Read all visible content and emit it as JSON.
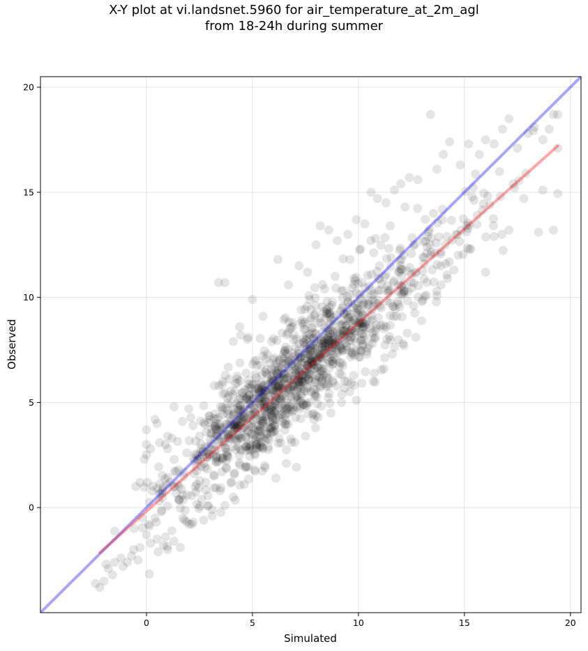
{
  "chart_data": {
    "type": "scatter",
    "title_lines": [
      "X-Y plot at vi.landsnet.5960 for air_temperature_at_2m_agl",
      "from 18-24h during summer"
    ],
    "xlabel": "Simulated",
    "ylabel": "Observed",
    "xlim": [
      -5,
      20.5
    ],
    "ylim": [
      -5,
      20.5
    ],
    "xticks": [
      0,
      5,
      10,
      15,
      20
    ],
    "yticks": [
      0,
      5,
      10,
      15,
      20
    ],
    "xtick_labels": [
      "0",
      "5",
      "10",
      "15",
      "20"
    ],
    "ytick_labels": [
      "0",
      "5",
      "10",
      "15",
      "20"
    ],
    "grid": true,
    "legend": "none",
    "point_color": "#000000",
    "point_alpha": 0.1,
    "point_count": 1500,
    "point_cluster_line": {
      "slope": 0.89,
      "intercept": 0.0
    },
    "identity_line": {
      "x": [
        -5,
        20.5
      ],
      "y": [
        -5,
        20.5
      ],
      "color": "#0000ff",
      "alpha": 0.35
    },
    "regression_line": {
      "x": [
        -2.2,
        19.4
      ],
      "y": [
        -2.15,
        17.2
      ],
      "color": "#ff0000",
      "alpha": 0.35
    },
    "points": [
      [
        -2.2,
        -3.8
      ],
      [
        -2.0,
        -3.5
      ],
      [
        -1.8,
        -2.9
      ],
      [
        -1.5,
        -2.6
      ],
      [
        -1.1,
        -2.8
      ],
      [
        -0.7,
        -2.3
      ],
      [
        -0.4,
        -2.5
      ],
      [
        -1.9,
        -2.7
      ],
      [
        -1.6,
        -3.2
      ],
      [
        -1.2,
        -2.4
      ],
      [
        -0.9,
        -2.6
      ],
      [
        -0.3,
        -1.9
      ],
      [
        0.2,
        -1.7
      ],
      [
        0.5,
        -1.5
      ],
      [
        0.8,
        -1.8
      ],
      [
        1.0,
        -2.0
      ],
      [
        1.3,
        -1.6
      ],
      [
        1.6,
        -1.9
      ],
      [
        0.1,
        -0.8
      ],
      [
        0.4,
        -0.5
      ],
      [
        0.7,
        -0.2
      ],
      [
        -0.5,
        1.0
      ],
      [
        -0.3,
        1.2
      ],
      [
        -0.1,
        2.3
      ],
      [
        0.2,
        2.8
      ],
      [
        0.0,
        3.0
      ],
      [
        0.0,
        3.7
      ],
      [
        0.4,
        4.2
      ],
      [
        0.5,
        4.0
      ],
      [
        0.9,
        3.0
      ],
      [
        1.0,
        3.4
      ],
      [
        1.3,
        4.8
      ],
      [
        1.7,
        4.1
      ],
      [
        2.0,
        4.7
      ],
      [
        2.2,
        3.9
      ],
      [
        1.0,
        2.8
      ],
      [
        1.2,
        3.3
      ],
      [
        1.5,
        1.8
      ],
      [
        1.9,
        2.6
      ],
      [
        2.3,
        1.0
      ],
      [
        2.6,
        0.4
      ],
      [
        2.9,
        0.1
      ],
      [
        2.7,
        -0.6
      ],
      [
        3.1,
        -0.1
      ],
      [
        3.2,
        5.8
      ],
      [
        3.6,
        5.4
      ],
      [
        3.9,
        6.1
      ],
      [
        3.4,
        10.7
      ],
      [
        3.7,
        10.7
      ],
      [
        4.1,
        7.9
      ],
      [
        4.4,
        8.6
      ],
      [
        4.8,
        8.1
      ],
      [
        5.0,
        9.9
      ],
      [
        5.5,
        9.1
      ],
      [
        5.9,
        7.9
      ],
      [
        6.2,
        11.8
      ],
      [
        6.7,
        10.6
      ],
      [
        7.2,
        11.5
      ],
      [
        7.6,
        11.2
      ],
      [
        8.0,
        12.5
      ],
      [
        8.2,
        13.4
      ],
      [
        8.6,
        13.2
      ],
      [
        9.0,
        12.7
      ],
      [
        9.5,
        13.0
      ],
      [
        9.9,
        13.7
      ],
      [
        10.3,
        13.5
      ],
      [
        10.6,
        15.0
      ],
      [
        10.9,
        14.7
      ],
      [
        11.3,
        14.5
      ],
      [
        11.7,
        15.1
      ],
      [
        12.0,
        15.4
      ],
      [
        12.4,
        15.7
      ],
      [
        12.8,
        15.6
      ],
      [
        13.4,
        18.7
      ],
      [
        13.7,
        16.1
      ],
      [
        14.0,
        16.8
      ],
      [
        14.3,
        17.4
      ],
      [
        14.8,
        16.3
      ],
      [
        15.2,
        17.3
      ],
      [
        15.7,
        16.8
      ],
      [
        16.0,
        17.5
      ],
      [
        16.4,
        17.3
      ],
      [
        16.8,
        18.0
      ],
      [
        17.1,
        18.5
      ],
      [
        17.5,
        17.1
      ],
      [
        18.0,
        17.8
      ],
      [
        18.3,
        18.1
      ],
      [
        18.7,
        17.5
      ],
      [
        19.0,
        18.0
      ],
      [
        19.2,
        18.7
      ],
      [
        19.4,
        18.7
      ],
      [
        19.2,
        13.2
      ],
      [
        18.5,
        13.1
      ],
      [
        18.7,
        15.1
      ],
      [
        17.8,
        14.7
      ],
      [
        17.1,
        13.2
      ],
      [
        16.4,
        12.9
      ],
      [
        16.0,
        11.2
      ],
      [
        15.3,
        12.3
      ],
      [
        14.7,
        12.0
      ],
      [
        14.2,
        10.9
      ],
      [
        13.7,
        10.3
      ],
      [
        13.0,
        9.8
      ],
      [
        12.3,
        8.3
      ],
      [
        12.1,
        7.8
      ],
      [
        11.6,
        7.3
      ],
      [
        11.2,
        6.6
      ],
      [
        10.7,
        6.0
      ],
      [
        9.9,
        5.1
      ],
      [
        9.2,
        5.0
      ],
      [
        8.7,
        4.5
      ],
      [
        8.1,
        4.3
      ],
      [
        7.5,
        3.4
      ],
      [
        7.0,
        3.1
      ],
      [
        6.6,
        2.1
      ],
      [
        6.1,
        1.4
      ],
      [
        5.6,
        1.9
      ],
      [
        5.1,
        1.8
      ],
      [
        4.6,
        1.1
      ],
      [
        4.1,
        0.5
      ],
      [
        3.7,
        0.1
      ],
      [
        3.1,
        -0.4
      ],
      [
        2.2,
        -0.7
      ],
      [
        1.8,
        -0.6
      ],
      [
        1.2,
        -1.1
      ],
      [
        0.9,
        -1.4
      ],
      [
        -0.6,
        -2.0
      ],
      [
        0.0,
        -1.3
      ],
      [
        -0.2,
        -0.5
      ],
      [
        0.6,
        0.3
      ],
      [
        1.1,
        1.2
      ],
      [
        1.4,
        1.7
      ],
      [
        2.4,
        2.3
      ],
      [
        2.8,
        1.2
      ],
      [
        3.3,
        2.4
      ],
      [
        3.9,
        3.5
      ],
      [
        4.3,
        3.9
      ],
      [
        4.9,
        4.4
      ],
      [
        5.3,
        5.2
      ],
      [
        5.8,
        5.6
      ],
      [
        6.3,
        6.2
      ],
      [
        6.8,
        6.5
      ],
      [
        7.4,
        6.9
      ],
      [
        7.8,
        7.1
      ],
      [
        8.3,
        7.6
      ],
      [
        8.8,
        8.0
      ],
      [
        9.3,
        8.4
      ],
      [
        9.8,
        8.9
      ],
      [
        10.4,
        9.3
      ],
      [
        10.9,
        9.7
      ],
      [
        11.4,
        10.2
      ],
      [
        11.9,
        10.6
      ],
      [
        12.5,
        11.1
      ],
      [
        13.1,
        11.6
      ],
      [
        13.6,
        12.1
      ],
      [
        14.1,
        12.5
      ],
      [
        14.6,
        13.0
      ],
      [
        15.1,
        13.4
      ],
      [
        15.6,
        13.9
      ],
      [
        16.2,
        14.4
      ],
      [
        16.7,
        14.8
      ],
      [
        17.3,
        15.4
      ],
      [
        17.9,
        15.9
      ],
      [
        5.7,
        7.3
      ],
      [
        6.4,
        8.3
      ],
      [
        6.9,
        8.8
      ],
      [
        7.3,
        9.4
      ],
      [
        7.7,
        9.9
      ],
      [
        8.4,
        10.4
      ],
      [
        8.9,
        11.0
      ],
      [
        9.6,
        11.8
      ],
      [
        10.1,
        12.3
      ],
      [
        10.8,
        12.8
      ],
      [
        11.5,
        13.4
      ],
      [
        12.2,
        14.3
      ],
      [
        4.7,
        6.4
      ],
      [
        4.2,
        5.9
      ],
      [
        3.5,
        4.8
      ],
      [
        3.0,
        4.2
      ],
      [
        2.5,
        3.4
      ],
      [
        5.2,
        3.1
      ],
      [
        5.9,
        3.6
      ],
      [
        6.5,
        4.0
      ],
      [
        7.1,
        4.8
      ],
      [
        7.9,
        5.6
      ],
      [
        8.5,
        6.2
      ],
      [
        9.1,
        6.7
      ],
      [
        9.7,
        7.3
      ],
      [
        10.2,
        7.7
      ],
      [
        10.8,
        8.1
      ],
      [
        11.3,
        8.6
      ],
      [
        11.8,
        9.1
      ],
      [
        12.6,
        9.6
      ],
      [
        13.2,
        10.1
      ],
      [
        13.9,
        10.6
      ],
      [
        14.5,
        11.3
      ]
    ]
  }
}
